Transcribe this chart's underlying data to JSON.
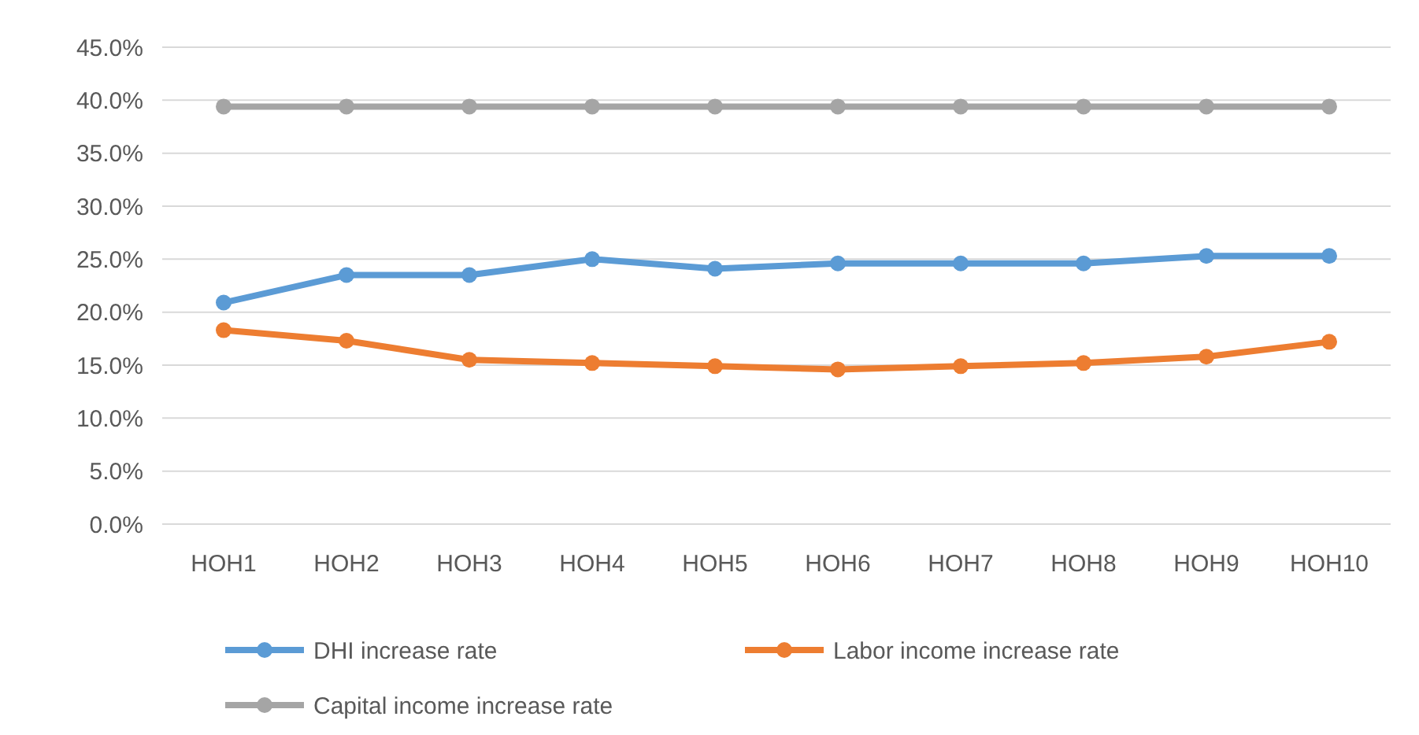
{
  "chart_data": {
    "type": "line",
    "categories": [
      "HOH1",
      "HOH2",
      "HOH3",
      "HOH4",
      "HOH5",
      "HOH6",
      "HOH7",
      "HOH8",
      "HOH9",
      "HOH10"
    ],
    "series": [
      {
        "name": "DHI increase rate",
        "color": "#5b9bd5",
        "values": [
          20.9,
          23.5,
          23.5,
          25.0,
          24.1,
          24.6,
          24.6,
          24.6,
          25.3,
          25.3
        ]
      },
      {
        "name": "Labor income increase rate",
        "color": "#ed7d31",
        "values": [
          18.3,
          17.3,
          15.5,
          15.2,
          14.9,
          14.6,
          14.9,
          15.2,
          15.8,
          17.2
        ]
      },
      {
        "name": "Capital income increase rate",
        "color": "#a5a5a5",
        "values": [
          39.4,
          39.4,
          39.4,
          39.4,
          39.4,
          39.4,
          39.4,
          39.4,
          39.4,
          39.4
        ]
      }
    ],
    "ylim": [
      0,
      45
    ],
    "yticks": [
      {
        "value": 0,
        "label": "0.0%"
      },
      {
        "value": 5,
        "label": "5.0%"
      },
      {
        "value": 10,
        "label": "10.0%"
      },
      {
        "value": 15,
        "label": "15.0%"
      },
      {
        "value": 20,
        "label": "20.0%"
      },
      {
        "value": 25,
        "label": "25.0%"
      },
      {
        "value": 30,
        "label": "30.0%"
      },
      {
        "value": 35,
        "label": "35.0%"
      },
      {
        "value": 40,
        "label": "40.0%"
      },
      {
        "value": 45,
        "label": "45.0%"
      }
    ],
    "grid": "y",
    "legend": "bottom",
    "marker": "circle",
    "line_style": "solid"
  }
}
